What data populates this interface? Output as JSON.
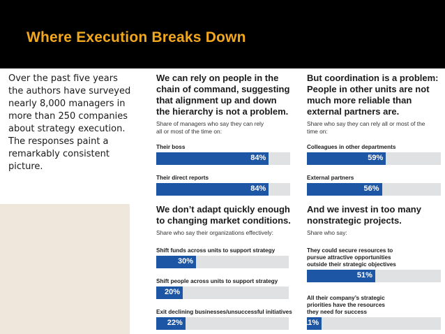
{
  "slide": {
    "title": "Where Execution Breaks Down",
    "intro_lines": [
      "Over the past five years",
      "the authors have surveyed",
      "nearly 8,000 managers in",
      "more than 250 companies",
      "about strategy execution.",
      "The responses paint a",
      "remarkably consistent",
      "picture."
    ]
  },
  "colors": {
    "title": "#f2a81d",
    "bar": "#1e56a6",
    "track": "#dfe1e3",
    "background": "#000000"
  },
  "chart_data": [
    {
      "type": "bar",
      "title_lines": [
        "We can rely on people in the",
        "chain of command, suggesting",
        "that alignment up and down",
        "the hierarchy is not a problem."
      ],
      "subtitle_lines": [
        "Share of managers who say they can rely",
        "all or most of the time on:"
      ],
      "categories": [
        [
          "Their boss"
        ],
        [
          "Their direct reports"
        ]
      ],
      "values": [
        84,
        84
      ],
      "labels": [
        "84%",
        "84%"
      ],
      "xlim": [
        0,
        100
      ]
    },
    {
      "type": "bar",
      "title_lines": [
        "But coordination is a problem:",
        "People in other units are not",
        "much more reliable than",
        "external partners are."
      ],
      "subtitle_lines": [
        "Share who say they can rely all or most of the",
        "time on:"
      ],
      "categories": [
        [
          "Colleagues in other departments"
        ],
        [
          "External partners"
        ]
      ],
      "values": [
        59,
        56
      ],
      "labels": [
        "59%",
        "56%"
      ],
      "xlim": [
        0,
        100
      ]
    },
    {
      "type": "bar",
      "title_lines": [
        "We don’t adapt quickly enough",
        "to changing market conditions."
      ],
      "subtitle_lines": [
        "Share who say their organizations effectively:"
      ],
      "categories": [
        [
          "Shift funds across units to support strategy"
        ],
        [
          "Shift people across units to support strategy"
        ],
        [
          "Exit declining businesses/unsuccessful initiatives"
        ]
      ],
      "values": [
        30,
        20,
        22
      ],
      "labels": [
        "30%",
        "20%",
        "22%"
      ],
      "xlim": [
        0,
        100
      ]
    },
    {
      "type": "bar",
      "title_lines": [
        "And we invest in too many",
        "nonstrategic projects."
      ],
      "subtitle_lines": [
        "Share who say:"
      ],
      "categories": [
        [
          "They could secure resources to",
          "pursue attractive opportunities",
          "outside their strategic objectives"
        ],
        [
          "All their company’s strategic",
          "priorities have the resources",
          "they need for success"
        ]
      ],
      "values": [
        51,
        11
      ],
      "labels": [
        "51%",
        "11%"
      ],
      "xlim": [
        0,
        100
      ]
    }
  ]
}
